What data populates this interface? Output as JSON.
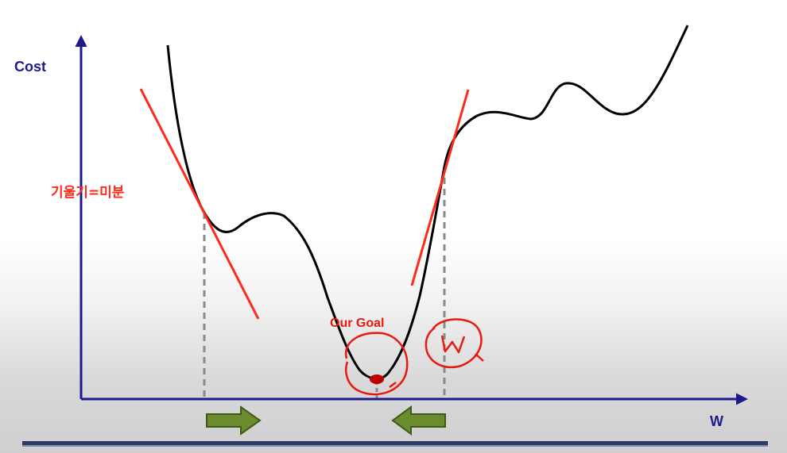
{
  "diagram": {
    "y_axis_label": "Cost",
    "x_axis_label": "W",
    "slope_label": "기울기=미분",
    "goal_label": "Our Goal",
    "handwritten_mark": "w"
  },
  "colors": {
    "axis": "#1f1a8c",
    "curve": "#000000",
    "tangent": "#ff2a1a",
    "handwriting": "#e8190e",
    "minimum_point": "#c00000",
    "arrow_fill": "#6b8c2e",
    "arrow_stroke": "#3f5a17",
    "guide_line": "#8a8a8a",
    "bottom_bar": "#2b3b63"
  },
  "icons": {
    "left_marker": "arrow-right-icon",
    "right_marker": "arrow-left-icon"
  }
}
